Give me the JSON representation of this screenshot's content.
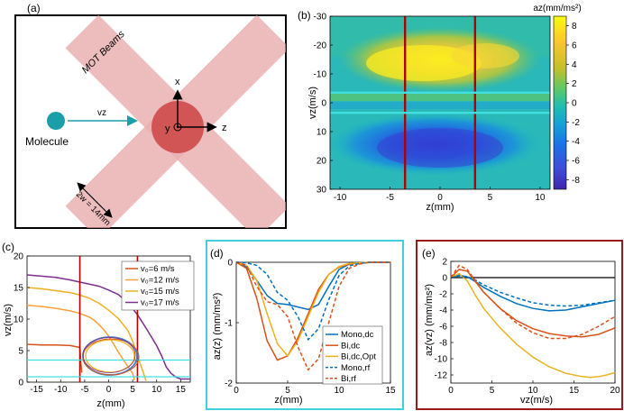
{
  "panel_labels": {
    "a": "(a)",
    "b": "(b)",
    "c": "(c)",
    "d": "(d)",
    "e": "(e)"
  },
  "schematic": {
    "mot_beams_label": "MOT Beams",
    "molecule_label": "Molecule",
    "velocity_label": "vz",
    "axis_x": "x",
    "axis_y": "y",
    "axis_z": "z",
    "beam_width_label": "2w = 14mm",
    "colors": {
      "beam": "#e6a3a3",
      "overlap": "#cc4444",
      "molecule": "#1a9fa8",
      "label_red": "#c0392b"
    }
  },
  "chart_data": [
    {
      "id": "b",
      "type": "heatmap",
      "xlabel": "z(mm)",
      "ylabel": "vz(m/s)",
      "colorbar_label": "az(mm/ms²)",
      "x_ticks": [
        -10,
        -5,
        0,
        5,
        10
      ],
      "y_ticks": [
        -30,
        -20,
        -10,
        0,
        10,
        20,
        30
      ],
      "xlim": [
        -11,
        11
      ],
      "ylim": [
        -30,
        30
      ],
      "y_inverted": true,
      "colorbar_ticks": [
        8,
        6,
        4,
        2,
        0,
        -2,
        -4,
        -6,
        -8
      ],
      "clim": [
        -9,
        9
      ],
      "vertical_lines_z": [
        -3.5,
        3.5
      ],
      "horizontal_lines_v": [
        -3.5,
        3.5
      ],
      "line_colors": {
        "vertical": "#b00000",
        "horizontal": "#40e0e0"
      }
    },
    {
      "id": "c",
      "type": "line",
      "xlabel": "z(mm)",
      "ylabel": "vz(m/s)",
      "xlim": [
        -17,
        17
      ],
      "ylim": [
        0,
        20
      ],
      "x_ticks": [
        -15,
        -10,
        -5,
        0,
        5,
        10,
        15
      ],
      "y_ticks": [
        0,
        5,
        10,
        15,
        20
      ],
      "vertical_lines_z": [
        -6,
        6
      ],
      "horizontal_lines_v": [
        3.5,
        -3.5
      ],
      "series": [
        {
          "name": "v₀=6 m/s",
          "color": "#d95319",
          "x": [
            -17,
            -14,
            -11,
            -8,
            -6,
            -5.8,
            -5.6
          ],
          "y": [
            6,
            5.9,
            5.9,
            5.8,
            5.5,
            3.2,
            1.5
          ]
        },
        {
          "name": "v₀=12 m/s",
          "color": "#ff9f3a",
          "x": [
            -17,
            -14,
            -11,
            -8,
            -6,
            -5,
            -4,
            -3,
            -2,
            -1,
            0,
            1,
            2,
            3,
            4,
            5,
            5.4
          ],
          "y": [
            12.2,
            12,
            11.7,
            11.3,
            10.9,
            10.6,
            10.3,
            9.8,
            9.1,
            8.3,
            7.3,
            6.1,
            4.8,
            3.6,
            2.5,
            1.4,
            0.3
          ]
        },
        {
          "name": "v₀=15 m/s",
          "color": "#edb120",
          "x": [
            -17,
            -14,
            -11,
            -8,
            -6,
            -4,
            -2,
            0,
            2,
            4,
            5,
            6,
            7,
            7.8
          ],
          "y": [
            15,
            14.8,
            14.5,
            14.2,
            13.8,
            13.3,
            12.5,
            11.4,
            10.1,
            8.2,
            6.5,
            4.2,
            2,
            0.2
          ]
        },
        {
          "name": "v₀=17 m/s",
          "color": "#7e2f8e",
          "x": [
            -17,
            -14,
            -11,
            -8,
            -5,
            -2,
            0,
            2,
            4,
            6,
            8,
            10,
            11,
            12,
            13,
            14,
            15,
            16,
            17
          ],
          "y": [
            17,
            16.8,
            16.6,
            16.2,
            15.7,
            15.2,
            14.6,
            13.9,
            12.6,
            10.7,
            8.3,
            5.8,
            4.2,
            2.4,
            1.4,
            0.8,
            0.5,
            0.5,
            0.5
          ]
        }
      ],
      "trapped_orbit": {
        "color_outer": "#4a7fc0",
        "colors": [
          "#d95319",
          "#edb120",
          "#7e2f8e",
          "#4a7fc0"
        ]
      }
    },
    {
      "id": "d",
      "type": "line",
      "xlabel": "z(mm)",
      "ylabel": "az(z) (mm/ms²)",
      "xlim": [
        0,
        15
      ],
      "ylim": [
        -2,
        0
      ],
      "x_ticks": [
        0,
        5,
        10,
        15
      ],
      "y_ticks": [
        0,
        -1,
        -2
      ],
      "border_color": "#40d0e0",
      "series": [
        {
          "name": "Mono,dc",
          "color": "#0072bd",
          "dash": false,
          "x": [
            0,
            1,
            2,
            3,
            4,
            5,
            6,
            7,
            8,
            9,
            10,
            11,
            12,
            13,
            14,
            15
          ],
          "y": [
            0,
            -0.08,
            -0.3,
            -0.55,
            -0.68,
            -0.7,
            -0.74,
            -0.78,
            -0.7,
            -0.4,
            -0.12,
            -0.03,
            -0.01,
            0,
            0,
            0
          ]
        },
        {
          "name": "Bi,dc",
          "color": "#d95319",
          "dash": false,
          "x": [
            0,
            1,
            2,
            3,
            4,
            5,
            6,
            7,
            8,
            9,
            10,
            11,
            12,
            13,
            14,
            15
          ],
          "y": [
            0,
            -0.1,
            -0.6,
            -1.3,
            -1.62,
            -1.55,
            -1.25,
            -0.85,
            -0.45,
            -0.2,
            -0.08,
            -0.03,
            -0.01,
            0,
            0,
            0
          ]
        },
        {
          "name": "Bi,dc,Opt",
          "color": "#edb120",
          "dash": false,
          "x": [
            0,
            1,
            2,
            3,
            4,
            5,
            6,
            7,
            8,
            9,
            10,
            11,
            12,
            13,
            14,
            15
          ],
          "y": [
            0,
            -0.05,
            -0.3,
            -0.85,
            -1.35,
            -1.55,
            -1.3,
            -0.9,
            -0.5,
            -0.2,
            -0.07,
            -0.02,
            -0.01,
            0,
            0,
            0
          ]
        },
        {
          "name": "Mono,rf",
          "color": "#0072bd",
          "dash": true,
          "x": [
            0,
            1,
            2,
            3,
            4,
            5,
            6,
            7,
            8,
            9,
            10,
            11,
            12,
            13,
            14,
            15
          ],
          "y": [
            0,
            -0.01,
            -0.05,
            -0.2,
            -0.5,
            -0.63,
            -0.9,
            -1.28,
            -1.1,
            -0.62,
            -0.22,
            -0.06,
            -0.02,
            0,
            0,
            0
          ]
        },
        {
          "name": "Bi,rf",
          "color": "#d95319",
          "dash": true,
          "x": [
            0,
            1,
            2,
            3,
            4,
            5,
            6,
            7,
            8,
            9,
            10,
            11,
            12,
            13,
            14,
            15
          ],
          "y": [
            0,
            -0.05,
            -0.4,
            -0.65,
            -0.7,
            -0.9,
            -1.4,
            -1.78,
            -1.6,
            -1.0,
            -0.4,
            -0.1,
            -0.03,
            0,
            0,
            0
          ]
        }
      ]
    },
    {
      "id": "e",
      "type": "line",
      "xlabel": "vz(m/s)",
      "ylabel": "az(vz) (mm/ms²)",
      "xlim": [
        0,
        20
      ],
      "ylim": [
        -13,
        2
      ],
      "x_ticks": [
        0,
        5,
        10,
        15,
        20
      ],
      "y_ticks": [
        2,
        0,
        -2,
        -4,
        -6,
        -8,
        -10,
        -12
      ],
      "border_color": "#9b1b1b",
      "zero_line": true,
      "series": [
        {
          "name": "Mono,dc",
          "color": "#0072bd",
          "dash": false,
          "x": [
            0,
            1,
            2,
            3,
            4,
            6,
            8,
            10,
            12,
            14,
            16,
            18,
            20
          ],
          "y": [
            0,
            0.3,
            0.1,
            -0.5,
            -1.2,
            -2.3,
            -3.2,
            -3.8,
            -4.1,
            -4,
            -3.6,
            -3.2,
            -2.8
          ]
        },
        {
          "name": "Bi,dc",
          "color": "#d95319",
          "dash": false,
          "x": [
            0,
            1,
            2,
            3,
            4,
            6,
            8,
            10,
            12,
            14,
            16,
            18,
            20
          ],
          "y": [
            0,
            1.0,
            0.8,
            -0.5,
            -1.8,
            -3.8,
            -5.3,
            -6.3,
            -6.9,
            -7.2,
            -7.3,
            -7.0,
            -6.2
          ]
        },
        {
          "name": "Bi,dc,Opt",
          "color": "#edb120",
          "dash": false,
          "x": [
            0,
            1,
            2,
            3,
            4,
            6,
            8,
            10,
            12,
            14,
            16,
            17,
            18,
            19,
            20
          ],
          "y": [
            0,
            0.5,
            -0.4,
            -2.2,
            -3.8,
            -6.2,
            -8.2,
            -9.8,
            -11,
            -11.8,
            -12.2,
            -12.3,
            -12.2,
            -12.0,
            -11.7
          ]
        },
        {
          "name": "Mono,rf",
          "color": "#0072bd",
          "dash": true,
          "x": [
            0,
            1,
            2,
            3,
            4,
            6,
            8,
            10,
            12,
            14,
            16,
            18,
            20
          ],
          "y": [
            0,
            0.2,
            0.1,
            -0.3,
            -0.9,
            -1.8,
            -2.5,
            -3.1,
            -3.4,
            -3.5,
            -3.4,
            -3.1,
            -2.8
          ]
        },
        {
          "name": "Bi,rf",
          "color": "#d95319",
          "dash": true,
          "x": [
            0,
            1,
            2,
            3,
            4,
            6,
            8,
            10,
            12,
            14,
            16,
            18,
            20
          ],
          "y": [
            0,
            1.5,
            1.0,
            -0.4,
            -1.8,
            -3.8,
            -5.6,
            -6.8,
            -7.5,
            -7.5,
            -7.0,
            -6.0,
            -4.8
          ]
        }
      ]
    }
  ]
}
